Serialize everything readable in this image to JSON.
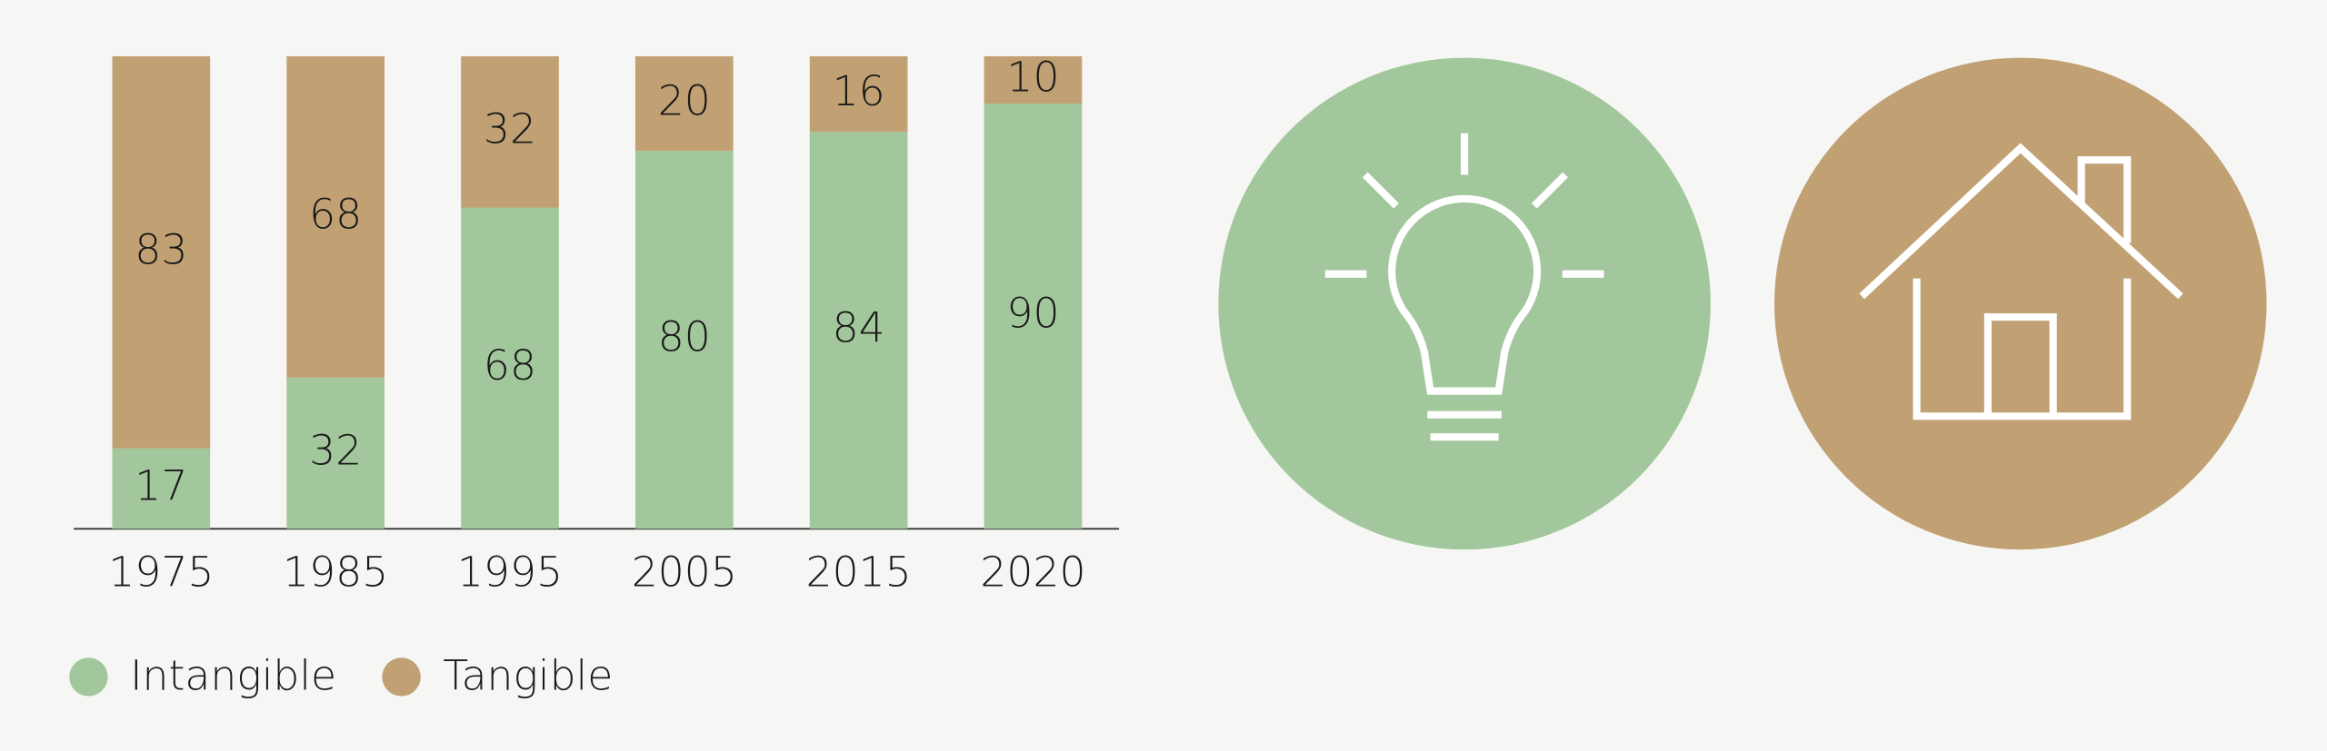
{
  "chart_data": {
    "type": "stacked_bar",
    "categories": [
      "1975",
      "1985",
      "1995",
      "2005",
      "2015",
      "2020"
    ],
    "series": [
      {
        "name": "Intangible",
        "color": "#a3c79c",
        "values": [
          17,
          32,
          68,
          80,
          84,
          90
        ]
      },
      {
        "name": "Tangible",
        "color": "#c1a173",
        "values": [
          83,
          68,
          32,
          20,
          16,
          10
        ]
      }
    ],
    "ylim": [
      0,
      100
    ],
    "legend": "bottom-left"
  }
}
